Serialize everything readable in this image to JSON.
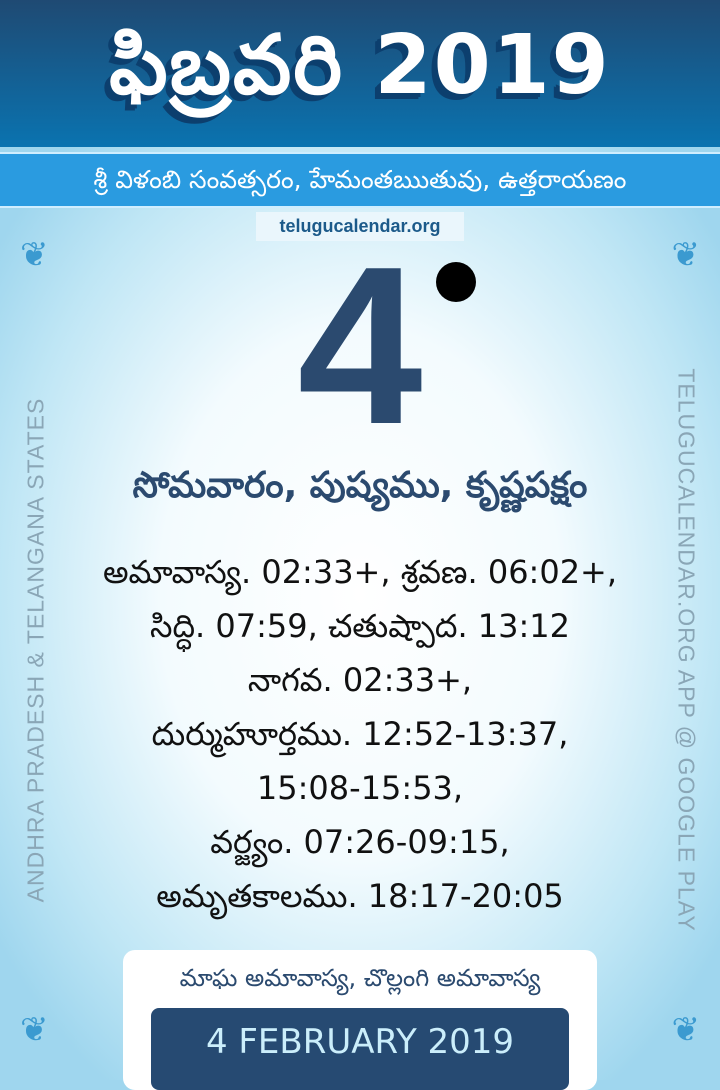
{
  "header": {
    "title": "ఫిబ్రవరి 2019",
    "subtitle": "శ్రీ విళంబి సంవత్సరం, హేమంతఋతువు, ఉత్తరాయణం",
    "website": "telugucalendar.org"
  },
  "day": {
    "number": "4",
    "moon_phase": "new-moon-dot",
    "weekday_line": "సోమవారం, పుష్యము, కృష్ణపక్షం"
  },
  "details": [
    "అమావాస్య. 02:33+, శ్రవణ. 06:02+,",
    "సిద్ధి. 07:59, చతుష్పాద. 13:12",
    "నాగవ. 02:33+,",
    "దుర్ముహూర్తము. 12:52-13:37,",
    "15:08-15:53,",
    "వర్జ్యం. 07:26-09:15,",
    "అమృతకాలము. 18:17-20:05"
  ],
  "side": {
    "left": "ANDHRA PRADESH & TELANGANA STATES",
    "right": "TELUGUCALENDAR.ORG APP @ GOOGLE PLAY"
  },
  "footer": {
    "festival": "మాఘ అమావాస్య, చొల్లంగి అమావాస్య",
    "date": "4 FEBRUARY 2019"
  },
  "colors": {
    "header": "#1f4a73",
    "band": "#2a9be0",
    "accent": "#2b4a6f"
  }
}
